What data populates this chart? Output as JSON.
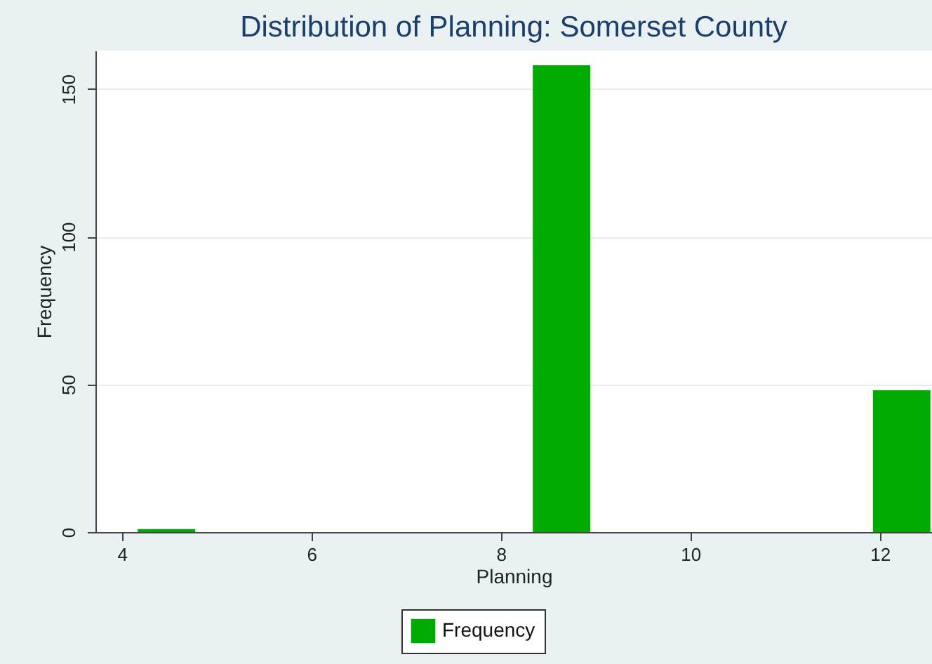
{
  "chart_data": {
    "type": "bar",
    "title": "Distribution of Planning: Somerset County",
    "xlabel": "Planning",
    "ylabel": "Frequency",
    "x": [
      4.47,
      8.64,
      12.23
    ],
    "series": [
      {
        "name": "Frequency",
        "color": "#00aa00",
        "values": [
          1,
          158,
          48
        ]
      }
    ],
    "xlim": [
      3.72,
      12.55
    ],
    "xticks": [
      4,
      6,
      8,
      10,
      12
    ],
    "ylim": [
      0,
      163
    ],
    "yticks": [
      0,
      50,
      100,
      150
    ],
    "grid": "y",
    "legend": "bottom"
  }
}
